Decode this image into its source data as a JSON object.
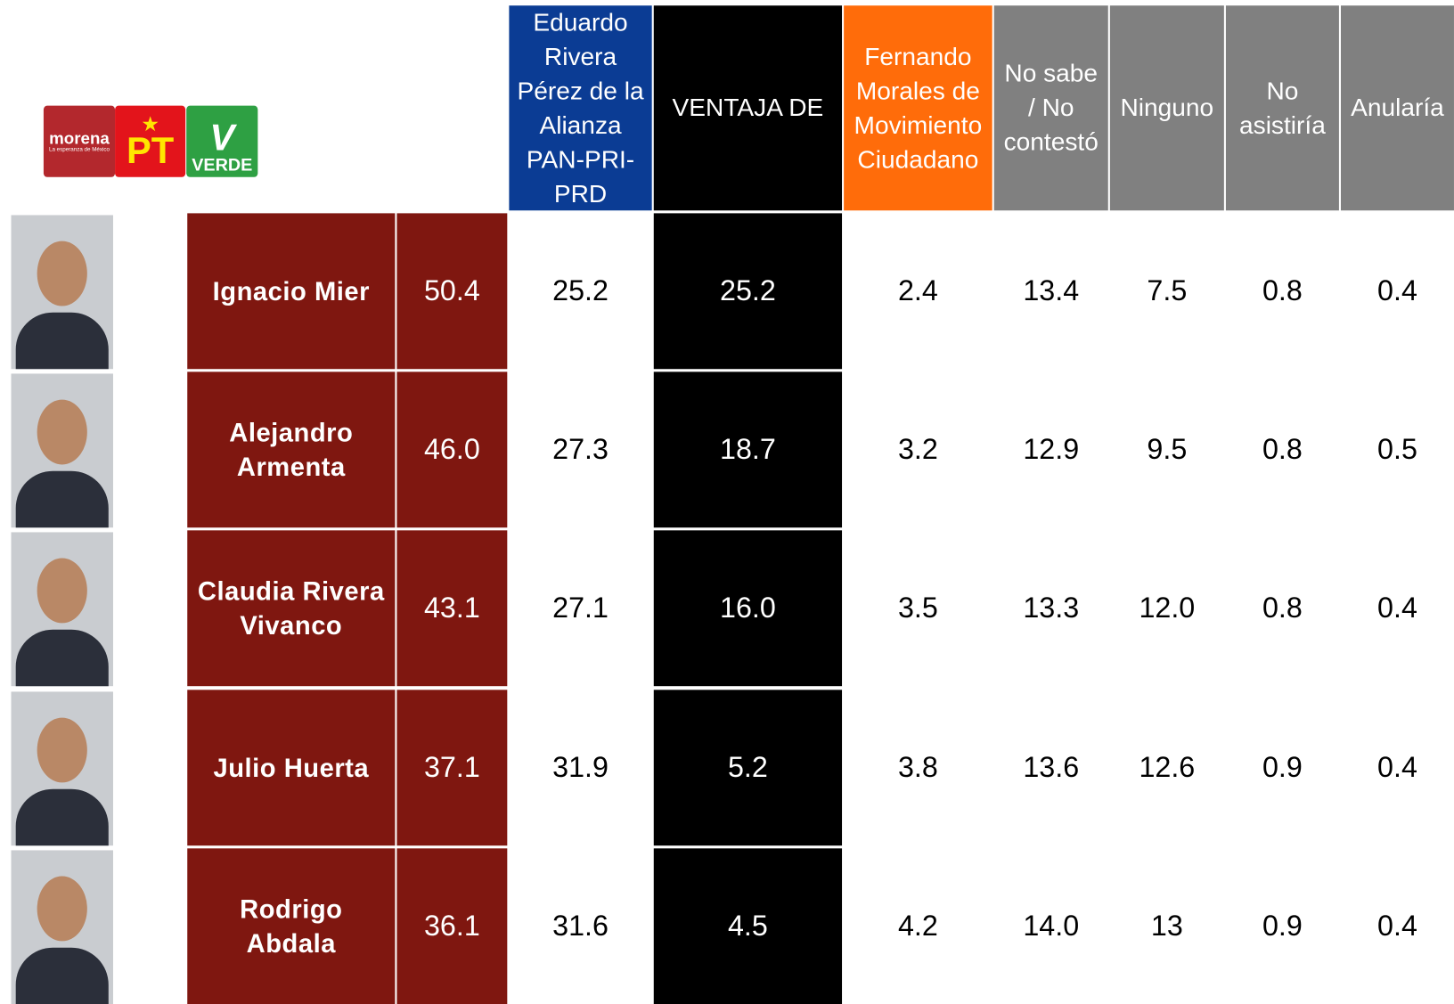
{
  "header": {
    "logos": {
      "morena": "morena",
      "morena_tagline": "La esperanza de México",
      "pt": "PT",
      "verde": "VERDE"
    },
    "columns": [
      "Eduardo Rivera Pérez de la Alianza PAN-PRI-PRD",
      "VENTAJA DE",
      "Fernando Morales de Movimiento Ciudadano",
      "No sabe / No contestó",
      "Ninguno",
      "No asistiría",
      "Anularía"
    ]
  },
  "table": {
    "rows": [
      {
        "name": "Ignacio Mier",
        "values": [
          "50.4",
          "25.2",
          "25.2",
          "2.4",
          "13.4",
          "7.5",
          "0.8",
          "0.4"
        ]
      },
      {
        "name": "Alejandro Armenta",
        "values": [
          "46.0",
          "27.3",
          "18.7",
          "3.2",
          "12.9",
          "9.5",
          "0.8",
          "0.5"
        ]
      },
      {
        "name": "Claudia Rivera Vivanco",
        "values": [
          "43.1",
          "27.1",
          "16.0",
          "3.5",
          "13.3",
          "12.0",
          "0.8",
          "0.4"
        ]
      },
      {
        "name": "Julio Huerta",
        "values": [
          "37.1",
          "31.9",
          "5.2",
          "3.8",
          "13.6",
          "12.6",
          "0.9",
          "0.4"
        ]
      },
      {
        "name": "Rodrigo Abdala",
        "values": [
          "36.1",
          "31.6",
          "4.5",
          "4.2",
          "14.0",
          "13",
          "0.9",
          "0.4"
        ]
      }
    ]
  }
}
